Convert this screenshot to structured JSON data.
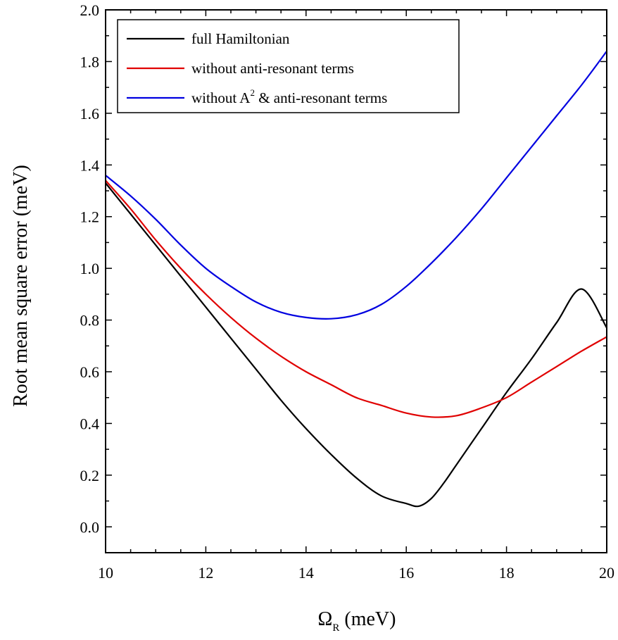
{
  "chart_data": {
    "type": "line",
    "xlabel": {
      "symbol": "Ω",
      "subscript": "R",
      "unit": " (meV)"
    },
    "ylabel": "Root mean square error (meV)",
    "xlim": [
      10,
      20
    ],
    "ylim": [
      -0.1,
      2.0
    ],
    "x_ticks": [
      "10",
      "12",
      "14",
      "16",
      "18",
      "20"
    ],
    "y_ticks": [
      "0.0",
      "0.2",
      "0.4",
      "0.6",
      "0.8",
      "1.0",
      "1.2",
      "1.4",
      "1.6",
      "1.8",
      "2.0"
    ],
    "grid": false,
    "legend_position": "top-left",
    "series": [
      {
        "name": "full Hamiltonian",
        "legend": {
          "before": "full Hamiltonian"
        },
        "color": "#000000",
        "x": [
          10,
          10.5,
          11,
          11.5,
          12,
          12.5,
          13,
          13.5,
          14,
          14.5,
          15,
          15.5,
          16,
          16.25,
          16.5,
          16.75,
          17,
          17.5,
          18,
          18.5,
          19,
          19.5,
          20
        ],
        "y": [
          1.33,
          1.21,
          1.09,
          0.97,
          0.85,
          0.73,
          0.61,
          0.49,
          0.38,
          0.28,
          0.19,
          0.12,
          0.09,
          0.08,
          0.11,
          0.17,
          0.24,
          0.38,
          0.52,
          0.65,
          0.79,
          0.92,
          0.77
        ]
      },
      {
        "name": "without anti-resonant terms",
        "legend": {
          "before": "without anti-resonant terms"
        },
        "color": "#e00000",
        "x": [
          10,
          10.5,
          11,
          11.5,
          12,
          12.5,
          13,
          13.5,
          14,
          14.5,
          15,
          15.5,
          16,
          16.5,
          17,
          17.5,
          18,
          18.5,
          19,
          19.5,
          20
        ],
        "y": [
          1.34,
          1.23,
          1.11,
          1.0,
          0.9,
          0.81,
          0.73,
          0.66,
          0.6,
          0.55,
          0.5,
          0.47,
          0.44,
          0.425,
          0.43,
          0.46,
          0.5,
          0.56,
          0.62,
          0.68,
          0.735
        ]
      },
      {
        "name": "without A² & anti-resonant terms",
        "legend": {
          "before": "without A",
          "sup": "2",
          "after": " & anti-resonant terms"
        },
        "color": "#0000e0",
        "x": [
          10,
          10.5,
          11,
          11.5,
          12,
          12.5,
          13,
          13.5,
          14,
          14.5,
          15,
          15.5,
          16,
          16.5,
          17,
          17.5,
          18,
          18.5,
          19,
          19.5,
          20
        ],
        "y": [
          1.36,
          1.28,
          1.19,
          1.09,
          1.0,
          0.93,
          0.87,
          0.83,
          0.81,
          0.805,
          0.82,
          0.86,
          0.93,
          1.02,
          1.12,
          1.23,
          1.35,
          1.47,
          1.59,
          1.71,
          1.84
        ]
      }
    ]
  }
}
